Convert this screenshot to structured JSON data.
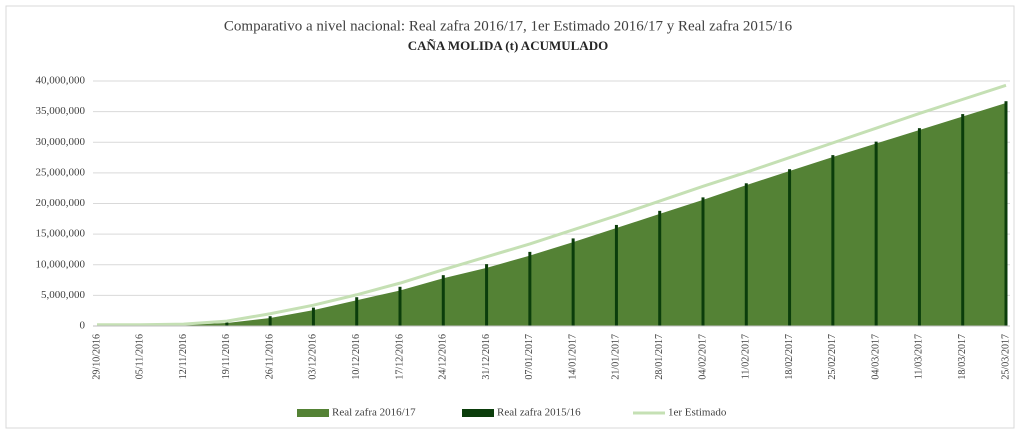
{
  "chart_data": {
    "type": "area",
    "title": "Comparativo a nivel nacional: Real zafra 2016/17, 1er Estimado 2016/17 y Real zafra 2015/16",
    "subtitle": "CAÑA MOLIDA (t) ACUMULADO",
    "categories": [
      "29/10/2016",
      "05/11/2016",
      "12/11/2016",
      "19/11/2016",
      "26/11/2016",
      "03/12/2016",
      "10/12/2016",
      "17/12/2016",
      "24/12/2016",
      "31/12/2016",
      "07/01/2017",
      "14/01/2017",
      "21/01/2017",
      "28/01/2017",
      "04/02/2017",
      "11/02/2017",
      "18/02/2017",
      "25/02/2017",
      "04/03/2017",
      "11/03/2017",
      "18/03/2017",
      "25/03/2017"
    ],
    "series": [
      {
        "name": "Real zafra 2016/17",
        "kind": "area",
        "color": "#548235",
        "values": [
          0,
          50000,
          200000,
          500000,
          1300000,
          2600000,
          4200000,
          5800000,
          7800000,
          9500000,
          11500000,
          13700000,
          16000000,
          18300000,
          20600000,
          23000000,
          25300000,
          27600000,
          29800000,
          32000000,
          34200000,
          36400000
        ]
      },
      {
        "name": "Real zafra 2015/16",
        "kind": "bar",
        "color": "#0b3d0b",
        "values": [
          0,
          100000,
          400000,
          600000,
          1600000,
          3000000,
          4700000,
          6400000,
          8300000,
          10100000,
          12100000,
          14300000,
          16500000,
          18800000,
          21000000,
          23300000,
          25600000,
          27900000,
          30100000,
          32300000,
          34600000,
          36700000
        ]
      },
      {
        "name": "1er Estimado",
        "kind": "line",
        "color": "#c5e0b4",
        "values": [
          200000,
          200000,
          300000,
          800000,
          2000000,
          3400000,
          5100000,
          7000000,
          9200000,
          11300000,
          13400000,
          15700000,
          18000000,
          20400000,
          22800000,
          25100000,
          27500000,
          29900000,
          32300000,
          34700000,
          37000000,
          39300000
        ]
      }
    ],
    "ylim": [
      0,
      40000000
    ],
    "yticks": [
      0,
      {
        "value": 5000000,
        "label": "5,000,000"
      },
      {
        "value": 10000000,
        "label": "10,000,000"
      },
      {
        "value": 15000000,
        "label": "15,000,000"
      },
      {
        "value": 20000000,
        "label": "20,000,000"
      },
      {
        "value": 25000000,
        "label": "25,000,000"
      },
      {
        "value": 30000000,
        "label": "30,000,000"
      },
      {
        "value": 35000000,
        "label": "35,000,000"
      },
      {
        "value": 40000000,
        "label": "40,000,000"
      }
    ],
    "grid": true,
    "legend": "bottom"
  }
}
